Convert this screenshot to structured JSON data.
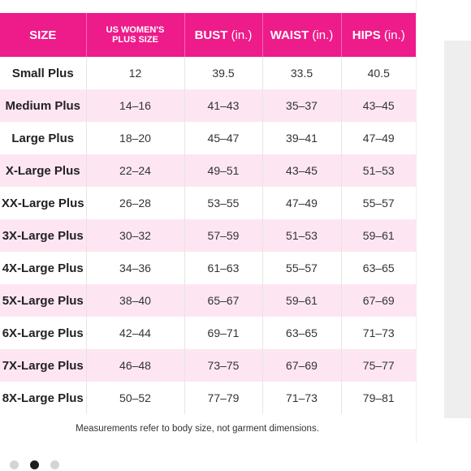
{
  "table": {
    "headers": [
      {
        "label": "SIZE",
        "unit": ""
      },
      {
        "label": "US WOMEN'S",
        "label2": "PLUS SIZE",
        "unit": ""
      },
      {
        "label": "BUST",
        "unit": "(in.)"
      },
      {
        "label": "WAIST",
        "unit": "(in.)"
      },
      {
        "label": "HIPS",
        "unit": "(in.)"
      }
    ],
    "rows": [
      [
        "Small Plus",
        "12",
        "39.5",
        "33.5",
        "40.5"
      ],
      [
        "Medium Plus",
        "14–16",
        "41–43",
        "35–37",
        "43–45"
      ],
      [
        "Large Plus",
        "18–20",
        "45–47",
        "39–41",
        "47–49"
      ],
      [
        "X-Large Plus",
        "22–24",
        "49–51",
        "43–45",
        "51–53"
      ],
      [
        "XX-Large Plus",
        "26–28",
        "53–55",
        "47–49",
        "55–57"
      ],
      [
        "3X-Large Plus",
        "30–32",
        "57–59",
        "51–53",
        "59–61"
      ],
      [
        "4X-Large Plus",
        "34–36",
        "61–63",
        "55–57",
        "63–65"
      ],
      [
        "5X-Large Plus",
        "38–40",
        "65–67",
        "59–61",
        "67–69"
      ],
      [
        "6X-Large Plus",
        "42–44",
        "69–71",
        "63–65",
        "71–73"
      ],
      [
        "7X-Large Plus",
        "46–48",
        "73–75",
        "67–69",
        "75–77"
      ],
      [
        "8X-Large Plus",
        "50–52",
        "77–79",
        "71–73",
        "79–81"
      ]
    ]
  },
  "footnote": "Measurements refer to body size, not garment dimensions.",
  "carousel": {
    "count": 3,
    "active_index": 1
  },
  "colors": {
    "header_bg": "#ee1b8a",
    "stripe_bg": "#fde6f2",
    "active_dot": "#1e1e1e",
    "inactive_dot": "#d4d4d4"
  }
}
